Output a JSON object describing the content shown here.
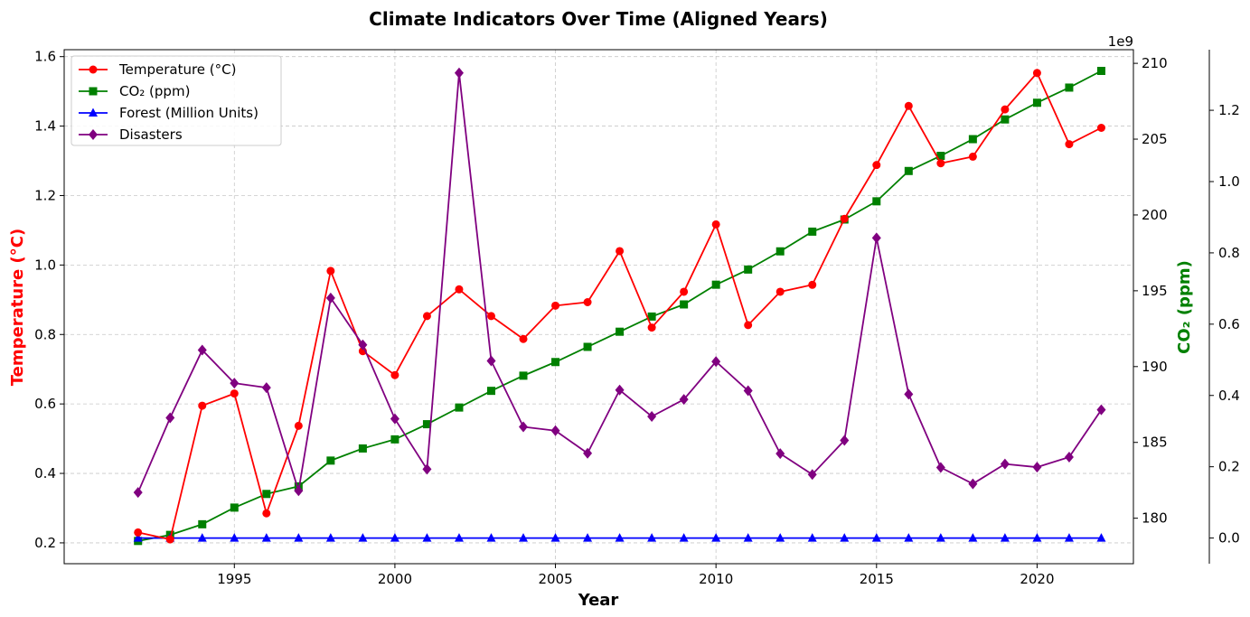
{
  "chart_data": {
    "type": "line",
    "title": "Climate Indicators Over Time (Aligned Years)",
    "xlabel": "Year",
    "ylabel_left": "Temperature (°C)",
    "ylabel_right": "CO₂ (ppm)",
    "right_axis_offset_text": "1e9",
    "left_axis_color": "#ff0000",
    "right_axis_color": "#008000",
    "x": [
      1992,
      1993,
      1994,
      1995,
      1996,
      1997,
      1998,
      1999,
      2000,
      2001,
      2002,
      2003,
      2004,
      2005,
      2006,
      2007,
      2008,
      2009,
      2010,
      2011,
      2012,
      2013,
      2014,
      2015,
      2016,
      2017,
      2018,
      2019,
      2020,
      2021,
      2022
    ],
    "xlim": [
      1989.7,
      2023.0
    ],
    "x_ticks": [
      "1995",
      "2000",
      "2005",
      "2010",
      "2015",
      "2020"
    ],
    "y_left_lim": [
      0.14,
      1.62
    ],
    "y_left_ticks": [
      "0.2",
      "0.4",
      "0.6",
      "0.8",
      "1.0",
      "1.2",
      "1.4",
      "1.6"
    ],
    "y_right_lim": [
      177.0,
      210.9
    ],
    "y_right_ticks": [
      "180",
      "185",
      "190",
      "195",
      "200",
      "205",
      "210"
    ],
    "y_third_lim": [
      -0.072,
      1.37
    ],
    "y_third_ticks": [
      "0.0",
      "0.2",
      "0.4",
      "0.6",
      "0.8",
      "1.0",
      "1.2"
    ],
    "grid": true,
    "legend_position": "top-left",
    "series": [
      {
        "name": "Temperature (°C)",
        "axis": "left",
        "color": "#ff0000",
        "marker": "circle",
        "values": [
          0.23,
          0.21,
          0.595,
          0.63,
          0.285,
          0.537,
          0.983,
          0.752,
          0.683,
          0.853,
          0.93,
          0.853,
          0.787,
          0.883,
          0.893,
          1.04,
          0.82,
          0.923,
          1.117,
          0.827,
          0.923,
          0.943,
          1.133,
          1.288,
          1.458,
          1.293,
          1.312,
          1.448,
          1.553,
          1.348,
          1.395
        ]
      },
      {
        "name": "CO₂ (ppm)",
        "axis": "right",
        "color": "#008000",
        "marker": "square",
        "values": [
          178.5,
          178.9,
          179.6,
          180.7,
          181.6,
          182.1,
          183.8,
          184.6,
          185.2,
          186.2,
          187.3,
          188.4,
          189.4,
          190.3,
          191.3,
          192.3,
          193.3,
          194.1,
          195.4,
          196.4,
          197.6,
          198.9,
          199.7,
          200.9,
          202.9,
          203.9,
          205.0,
          206.3,
          207.4,
          208.4,
          209.5
        ]
      },
      {
        "name": "Forest (Million Units)",
        "axis": "third",
        "color": "#0000ff",
        "marker": "triangle",
        "values": [
          0,
          0,
          0,
          0,
          0,
          0,
          0,
          0,
          0,
          0,
          0,
          0,
          0,
          0,
          0,
          0,
          0,
          0,
          0,
          0,
          0,
          0,
          0,
          0,
          0,
          0,
          0,
          0,
          0,
          0,
          0
        ]
      },
      {
        "name": "Disasters",
        "axis": "left",
        "color": "#800080",
        "marker": "diamond",
        "values": [
          0.345,
          0.56,
          0.755,
          0.66,
          0.647,
          0.35,
          0.905,
          0.77,
          0.557,
          0.412,
          1.553,
          0.724,
          0.534,
          0.523,
          0.458,
          0.64,
          0.564,
          0.613,
          0.722,
          0.638,
          0.457,
          0.397,
          0.495,
          1.078,
          0.628,
          0.417,
          0.37,
          0.427,
          0.418,
          0.447,
          0.583
        ]
      }
    ]
  }
}
